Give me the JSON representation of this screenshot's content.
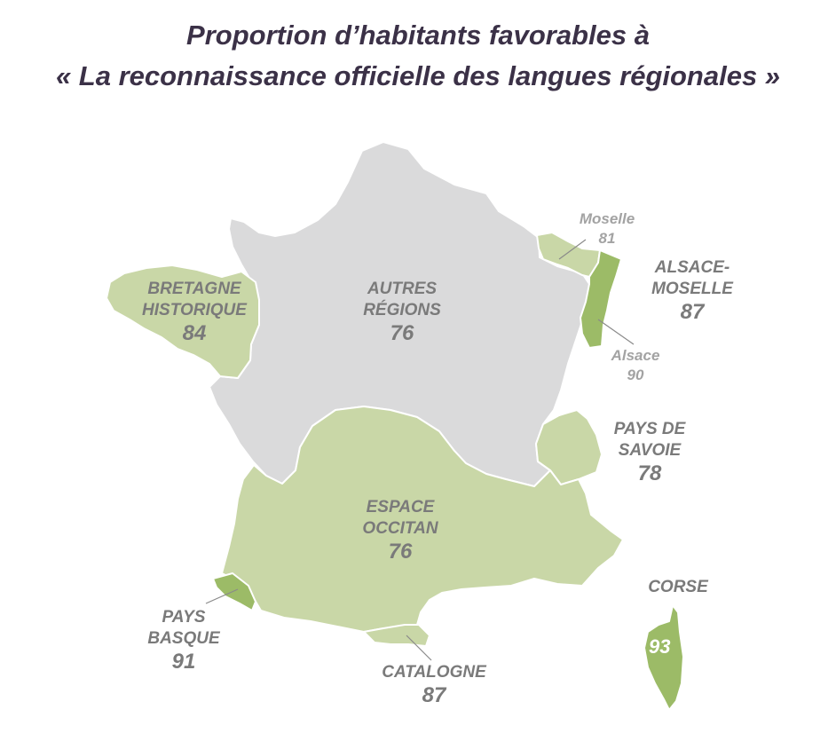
{
  "title": {
    "line1": "Proportion d’habitants favorables à",
    "line2": "« La reconnaissance officielle des langues régionales »"
  },
  "colors": {
    "autres": "#dadadb",
    "light_green": "#c9d7a7",
    "dark_green": "#9cbb67",
    "title": "#3b3147",
    "label": "#7a7a7a",
    "sub_label": "#a3a3a3"
  },
  "regions": {
    "bretagne": {
      "name1": "BRETAGNE",
      "name2": "HISTORIQUE",
      "value": "84"
    },
    "autres": {
      "name1": "AUTRES",
      "name2": "RÉGIONS",
      "value": "76"
    },
    "alsace_moselle": {
      "name1": "ALSACE-",
      "name2": "MOSELLE",
      "value": "87"
    },
    "moselle": {
      "name": "Moselle",
      "value": "81"
    },
    "alsace": {
      "name": "Alsace",
      "value": "90"
    },
    "savoie": {
      "name1": "PAYS DE",
      "name2": "SAVOIE",
      "value": "78"
    },
    "occitan": {
      "name1": "ESPACE",
      "name2": "OCCITAN",
      "value": "76"
    },
    "basque": {
      "name1": "PAYS",
      "name2": "BASQUE",
      "value": "91"
    },
    "catalogne": {
      "name": "CATALOGNE",
      "value": "87"
    },
    "corse": {
      "name": "CORSE",
      "value": "93"
    }
  }
}
